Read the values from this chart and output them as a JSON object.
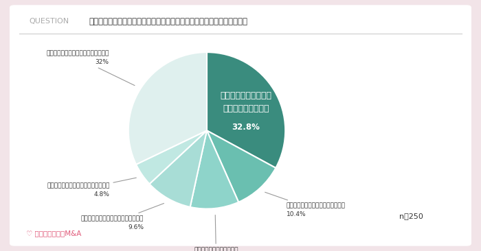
{
  "title_question": "QUESTION",
  "title_text": "自社の売却や譲渡の意向について社内にはどれくらい共有していますか？",
  "slices": [
    {
      "label": "役員等の経営陣にまで\n意向を共有している",
      "pct": 32.8,
      "color": "#3a8c7e",
      "bold": true
    },
    {
      "label": "幹部社員にまで意向を共有している",
      "pct": 10.4,
      "color": "#6abfb0",
      "bold": false
    },
    {
      "label": "特定の部門やチームにまで\n意向を共有している",
      "pct": 10.0,
      "color": "#8ed4ca",
      "bold": false
    },
    {
      "label": "一部の社員にまで意向を共有している",
      "pct": 9.6,
      "color": "#a8ddd6",
      "bold": false
    },
    {
      "label": "全ての社員にまで意向を共有している",
      "pct": 4.8,
      "color": "#c0e8e2",
      "bold": false
    },
    {
      "label": "自分以外に一切意向を共有していない",
      "pct": 32.0,
      "color": "#dff0ee",
      "bold": false
    }
  ],
  "n_label": "n＝250",
  "bg_outer": "#f2e4e8",
  "bg_inner": "#ffffff",
  "question_color": "#aaaaaa",
  "text_color": "#333333"
}
